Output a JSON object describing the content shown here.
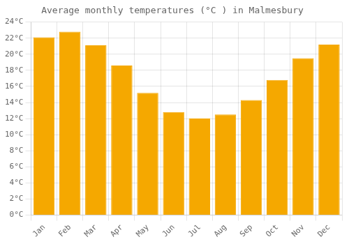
{
  "chart_data": {
    "type": "bar",
    "title": "Average monthly temperatures (°C ) in Malmesbury",
    "categories": [
      "Jan",
      "Feb",
      "Mar",
      "Apr",
      "May",
      "Jun",
      "Jul",
      "Aug",
      "Sep",
      "Oct",
      "Nov",
      "Dec"
    ],
    "values": [
      22.1,
      22.8,
      21.1,
      18.6,
      15.2,
      12.8,
      12.0,
      12.5,
      14.3,
      16.8,
      19.5,
      21.2
    ],
    "color": "#F5A800",
    "ylim": [
      0,
      24
    ],
    "yticks": [
      {
        "value": 0,
        "label": "0°C"
      },
      {
        "value": 2,
        "label": "2°C"
      },
      {
        "value": 4,
        "label": "4°C"
      },
      {
        "value": 6,
        "label": "6°C"
      },
      {
        "value": 8,
        "label": "8°C"
      },
      {
        "value": 10,
        "label": "10°C"
      },
      {
        "value": 12,
        "label": "12°C"
      },
      {
        "value": 14,
        "label": "14°C"
      },
      {
        "value": 16,
        "label": "16°C"
      },
      {
        "value": 18,
        "label": "18°C"
      },
      {
        "value": 20,
        "label": "20°C"
      },
      {
        "value": 22,
        "label": "22°C"
      },
      {
        "value": 24,
        "label": "24°C"
      }
    ],
    "grid": true
  }
}
